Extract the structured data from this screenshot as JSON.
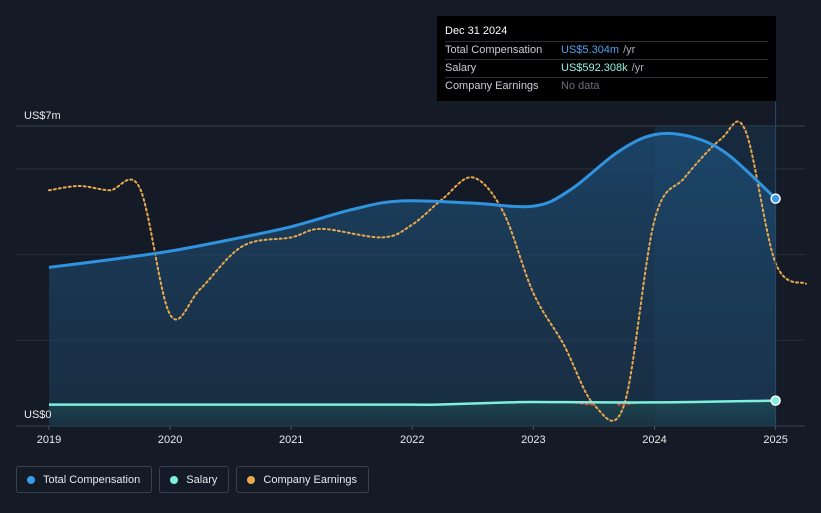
{
  "tooltip": {
    "date": "Dec 31 2024",
    "rows": [
      {
        "label": "Total Compensation",
        "value": "US$5.304m",
        "unit": "/yr"
      },
      {
        "label": "Salary",
        "value": "US$592.308k",
        "unit": "/yr"
      },
      {
        "label": "Company Earnings",
        "value": "No data",
        "unit": ""
      }
    ]
  },
  "legend": [
    {
      "label": "Total Compensation",
      "color": "#3a9be8"
    },
    {
      "label": "Salary",
      "color": "#7ff0de"
    },
    {
      "label": "Company Earnings",
      "color": "#e8a94e"
    }
  ],
  "colors": {
    "background": "#151b26",
    "total": "#2f93e0",
    "salary": "#7ff0de",
    "earnings": "#e8a94e",
    "earnings_negative": "#e0413a",
    "grid": "#2a303b"
  },
  "chart_data": {
    "type": "line",
    "ylabel_top": "US$7m",
    "ylabel_bottom": "US$0",
    "ylim": [
      0,
      7
    ],
    "xlim": [
      2019,
      2025.25
    ],
    "x_ticks": [
      "2019",
      "2020",
      "2021",
      "2022",
      "2023",
      "2024",
      "2025"
    ],
    "grid": true,
    "legend_position": "bottom-left",
    "series": [
      {
        "name": "Total Compensation",
        "kind": "area",
        "unit": "US$m",
        "points": [
          [
            2019.0,
            3.7
          ],
          [
            2019.5,
            3.88
          ],
          [
            2020.0,
            4.08
          ],
          [
            2020.5,
            4.35
          ],
          [
            2021.0,
            4.65
          ],
          [
            2021.5,
            5.05
          ],
          [
            2021.9,
            5.25
          ],
          [
            2022.5,
            5.2
          ],
          [
            2023.0,
            5.13
          ],
          [
            2023.3,
            5.5
          ],
          [
            2023.7,
            6.4
          ],
          [
            2024.0,
            6.8
          ],
          [
            2024.3,
            6.75
          ],
          [
            2024.6,
            6.35
          ],
          [
            2025.0,
            5.304
          ]
        ]
      },
      {
        "name": "Salary",
        "kind": "area",
        "unit": "US$m",
        "points": [
          [
            2019.0,
            0.5
          ],
          [
            2020.0,
            0.5
          ],
          [
            2021.0,
            0.5
          ],
          [
            2022.0,
            0.5
          ],
          [
            2022.2,
            0.5
          ],
          [
            2022.8,
            0.55
          ],
          [
            2023.0,
            0.56
          ],
          [
            2024.0,
            0.55
          ],
          [
            2025.0,
            0.592
          ]
        ]
      },
      {
        "name": "Company Earnings",
        "kind": "dotted",
        "points": [
          [
            2019.0,
            5.5
          ],
          [
            2019.25,
            5.6
          ],
          [
            2019.5,
            5.5
          ],
          [
            2019.75,
            5.55
          ],
          [
            2020.0,
            2.6
          ],
          [
            2020.25,
            3.2
          ],
          [
            2020.6,
            4.2
          ],
          [
            2021.0,
            4.4
          ],
          [
            2021.25,
            4.6
          ],
          [
            2021.75,
            4.4
          ],
          [
            2022.0,
            4.7
          ],
          [
            2022.25,
            5.3
          ],
          [
            2022.5,
            5.8
          ],
          [
            2022.75,
            5.0
          ],
          [
            2023.0,
            3.1
          ],
          [
            2023.25,
            1.9
          ],
          [
            2023.5,
            0.5
          ],
          [
            2023.75,
            0.5
          ],
          [
            2024.0,
            4.8
          ],
          [
            2024.25,
            5.8
          ],
          [
            2024.55,
            6.7
          ],
          [
            2024.75,
            6.9
          ],
          [
            2025.0,
            3.8
          ],
          [
            2025.25,
            3.32
          ]
        ],
        "negative_range": [
          2023.35,
          2023.85
        ]
      }
    ],
    "highlight": {
      "from": 2024.0,
      "to": 2025.0
    },
    "marker_x": 2025.0
  }
}
